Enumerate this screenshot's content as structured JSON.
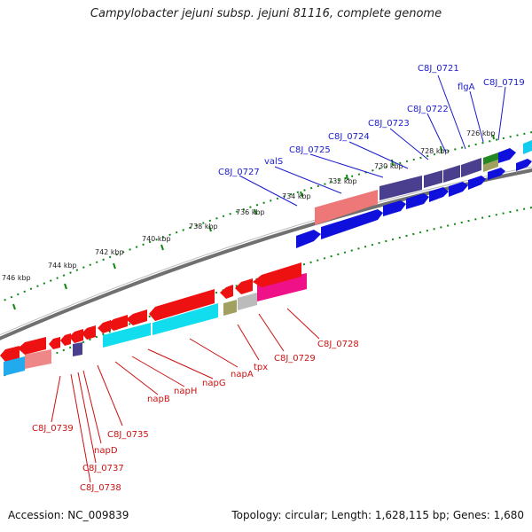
{
  "title": "Campylobacter jejuni subsp. jejuni 81116, complete genome",
  "footer": {
    "accession": "Accession: NC_009839",
    "topology": "Topology: circular; Length: 1,628,115 bp; Genes: 1,680"
  },
  "ticks": [
    "726 kbp",
    "728 kbp",
    "730 kbp",
    "732 kbp",
    "734 kbp",
    "736 kbp",
    "738 kbp",
    "740 kbp",
    "742 kbp",
    "744 kbp",
    "746 kbp"
  ],
  "labels_top": [
    "C8J_0719",
    "flgA",
    "C8J_0721",
    "C8J_0722",
    "C8J_0723",
    "C8J_0724",
    "C8J_0725",
    "valS",
    "C8J_0727"
  ],
  "labels_bottom": [
    "C8J_0728",
    "C8J_0729",
    "tpx",
    "napA",
    "napG",
    "napH",
    "napB",
    "C8J_0735",
    "napD",
    "C8J_0737",
    "C8J_0738",
    "C8J_0739"
  ],
  "colors": {
    "forward_blue": "#1010dd",
    "dark_slate": "#4a3f8f",
    "red": "#ee1111",
    "cyan": "#11ddee",
    "pink": "#ee4499",
    "salmon": "#ee8888",
    "olive": "#a0a060",
    "green": "#228822",
    "grey_track": "#888888",
    "tick_green": "#118811"
  }
}
